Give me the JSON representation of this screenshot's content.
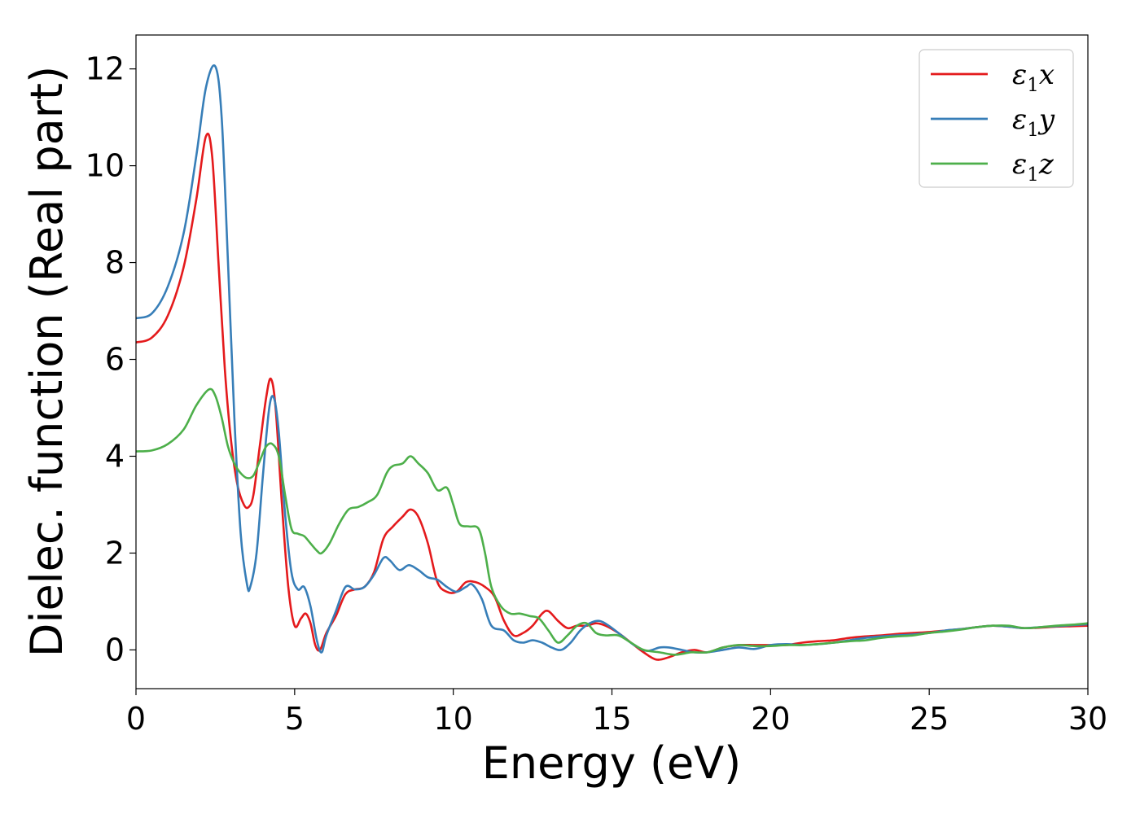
{
  "chart_data": {
    "type": "line",
    "xlabel": "Energy (eV)",
    "ylabel": "Dielec. function (Real part)",
    "xlim": [
      0,
      30
    ],
    "ylim": [
      -0.8,
      12.7
    ],
    "xticks": [
      0,
      5,
      10,
      15,
      20,
      25,
      30
    ],
    "yticks": [
      0,
      2,
      4,
      6,
      8,
      10,
      12
    ],
    "grid": false,
    "legend_position": "top-right",
    "series": [
      {
        "name": "ε₁x",
        "legend_parts": {
          "main": "ε",
          "sub": "1",
          "axis": "x"
        },
        "color": "#e41a1c",
        "points": [
          [
            0,
            6.35
          ],
          [
            0.5,
            6.45
          ],
          [
            1.0,
            6.9
          ],
          [
            1.5,
            7.9
          ],
          [
            1.9,
            9.3
          ],
          [
            2.2,
            10.6
          ],
          [
            2.4,
            10.2
          ],
          [
            2.6,
            8.0
          ],
          [
            2.8,
            5.8
          ],
          [
            3.0,
            4.3
          ],
          [
            3.2,
            3.4
          ],
          [
            3.4,
            3.0
          ],
          [
            3.55,
            2.95
          ],
          [
            3.7,
            3.2
          ],
          [
            3.9,
            4.2
          ],
          [
            4.1,
            5.2
          ],
          [
            4.25,
            5.6
          ],
          [
            4.4,
            5.0
          ],
          [
            4.6,
            3.0
          ],
          [
            4.8,
            1.3
          ],
          [
            5.0,
            0.5
          ],
          [
            5.2,
            0.65
          ],
          [
            5.35,
            0.75
          ],
          [
            5.5,
            0.55
          ],
          [
            5.65,
            0.1
          ],
          [
            5.8,
            0.0
          ],
          [
            6.0,
            0.35
          ],
          [
            6.3,
            0.7
          ],
          [
            6.6,
            1.15
          ],
          [
            6.9,
            1.25
          ],
          [
            7.2,
            1.3
          ],
          [
            7.5,
            1.6
          ],
          [
            7.8,
            2.3
          ],
          [
            8.1,
            2.55
          ],
          [
            8.4,
            2.75
          ],
          [
            8.65,
            2.9
          ],
          [
            8.9,
            2.75
          ],
          [
            9.2,
            2.2
          ],
          [
            9.5,
            1.4
          ],
          [
            9.8,
            1.2
          ],
          [
            10.1,
            1.2
          ],
          [
            10.4,
            1.4
          ],
          [
            10.7,
            1.4
          ],
          [
            11.0,
            1.3
          ],
          [
            11.3,
            1.1
          ],
          [
            11.6,
            0.6
          ],
          [
            11.9,
            0.3
          ],
          [
            12.2,
            0.35
          ],
          [
            12.5,
            0.5
          ],
          [
            12.8,
            0.75
          ],
          [
            13.0,
            0.8
          ],
          [
            13.3,
            0.6
          ],
          [
            13.6,
            0.45
          ],
          [
            13.9,
            0.5
          ],
          [
            14.2,
            0.5
          ],
          [
            14.5,
            0.55
          ],
          [
            14.8,
            0.5
          ],
          [
            15.2,
            0.35
          ],
          [
            15.6,
            0.15
          ],
          [
            16.0,
            -0.05
          ],
          [
            16.4,
            -0.2
          ],
          [
            16.8,
            -0.15
          ],
          [
            17.2,
            -0.05
          ],
          [
            17.6,
            0.0
          ],
          [
            18.0,
            -0.05
          ],
          [
            18.5,
            0.05
          ],
          [
            19.0,
            0.1
          ],
          [
            19.5,
            0.1
          ],
          [
            20.0,
            0.1
          ],
          [
            20.5,
            0.1
          ],
          [
            21.0,
            0.15
          ],
          [
            21.5,
            0.18
          ],
          [
            22.0,
            0.2
          ],
          [
            22.5,
            0.25
          ],
          [
            23.0,
            0.28
          ],
          [
            23.5,
            0.3
          ],
          [
            24.0,
            0.33
          ],
          [
            24.5,
            0.35
          ],
          [
            25.0,
            0.37
          ],
          [
            25.5,
            0.4
          ],
          [
            26.0,
            0.43
          ],
          [
            26.5,
            0.47
          ],
          [
            27.0,
            0.5
          ],
          [
            27.5,
            0.48
          ],
          [
            28.0,
            0.45
          ],
          [
            28.5,
            0.46
          ],
          [
            29.0,
            0.48
          ],
          [
            29.5,
            0.49
          ],
          [
            30.0,
            0.5
          ]
        ]
      },
      {
        "name": "ε₁y",
        "legend_parts": {
          "main": "ε",
          "sub": "1",
          "axis": "y"
        },
        "color": "#377eb8",
        "points": [
          [
            0,
            6.85
          ],
          [
            0.5,
            6.95
          ],
          [
            1.0,
            7.5
          ],
          [
            1.5,
            8.6
          ],
          [
            1.9,
            10.2
          ],
          [
            2.2,
            11.6
          ],
          [
            2.5,
            12.05
          ],
          [
            2.7,
            11.0
          ],
          [
            2.9,
            8.0
          ],
          [
            3.1,
            4.8
          ],
          [
            3.3,
            2.4
          ],
          [
            3.5,
            1.35
          ],
          [
            3.6,
            1.3
          ],
          [
            3.8,
            2.0
          ],
          [
            4.0,
            3.6
          ],
          [
            4.2,
            5.0
          ],
          [
            4.35,
            5.2
          ],
          [
            4.5,
            4.5
          ],
          [
            4.7,
            2.8
          ],
          [
            4.9,
            1.6
          ],
          [
            5.1,
            1.25
          ],
          [
            5.3,
            1.3
          ],
          [
            5.5,
            0.9
          ],
          [
            5.7,
            0.2
          ],
          [
            5.85,
            -0.05
          ],
          [
            6.0,
            0.3
          ],
          [
            6.3,
            0.8
          ],
          [
            6.6,
            1.3
          ],
          [
            6.9,
            1.25
          ],
          [
            7.2,
            1.3
          ],
          [
            7.5,
            1.55
          ],
          [
            7.8,
            1.9
          ],
          [
            8.0,
            1.85
          ],
          [
            8.3,
            1.65
          ],
          [
            8.6,
            1.75
          ],
          [
            8.9,
            1.65
          ],
          [
            9.2,
            1.5
          ],
          [
            9.5,
            1.45
          ],
          [
            9.8,
            1.3
          ],
          [
            10.1,
            1.2
          ],
          [
            10.4,
            1.3
          ],
          [
            10.6,
            1.35
          ],
          [
            10.9,
            1.05
          ],
          [
            11.2,
            0.5
          ],
          [
            11.6,
            0.4
          ],
          [
            11.9,
            0.2
          ],
          [
            12.2,
            0.15
          ],
          [
            12.5,
            0.2
          ],
          [
            12.8,
            0.15
          ],
          [
            13.1,
            0.05
          ],
          [
            13.4,
            0.0
          ],
          [
            13.7,
            0.15
          ],
          [
            14.0,
            0.4
          ],
          [
            14.3,
            0.55
          ],
          [
            14.6,
            0.6
          ],
          [
            14.9,
            0.5
          ],
          [
            15.3,
            0.3
          ],
          [
            15.7,
            0.1
          ],
          [
            16.1,
            -0.02
          ],
          [
            16.5,
            0.05
          ],
          [
            16.8,
            0.05
          ],
          [
            17.2,
            0.0
          ],
          [
            17.6,
            -0.05
          ],
          [
            18.0,
            -0.05
          ],
          [
            18.5,
            0.0
          ],
          [
            19.0,
            0.05
          ],
          [
            19.5,
            0.02
          ],
          [
            20.0,
            0.1
          ],
          [
            20.5,
            0.12
          ],
          [
            21.0,
            0.1
          ],
          [
            21.5,
            0.12
          ],
          [
            22.0,
            0.15
          ],
          [
            22.5,
            0.2
          ],
          [
            23.0,
            0.25
          ],
          [
            23.5,
            0.28
          ],
          [
            24.0,
            0.3
          ],
          [
            24.5,
            0.32
          ],
          [
            25.0,
            0.35
          ],
          [
            25.5,
            0.4
          ],
          [
            26.0,
            0.43
          ],
          [
            26.5,
            0.47
          ],
          [
            27.0,
            0.5
          ],
          [
            27.5,
            0.48
          ],
          [
            28.0,
            0.45
          ],
          [
            28.5,
            0.47
          ],
          [
            29.0,
            0.49
          ],
          [
            29.5,
            0.51
          ],
          [
            30.0,
            0.53
          ]
        ]
      },
      {
        "name": "ε₁z",
        "legend_parts": {
          "main": "ε",
          "sub": "1",
          "axis": "z"
        },
        "color": "#4daf4a",
        "points": [
          [
            0,
            4.1
          ],
          [
            0.5,
            4.12
          ],
          [
            1.0,
            4.25
          ],
          [
            1.5,
            4.55
          ],
          [
            1.9,
            5.05
          ],
          [
            2.3,
            5.38
          ],
          [
            2.5,
            5.25
          ],
          [
            2.7,
            4.8
          ],
          [
            2.9,
            4.2
          ],
          [
            3.1,
            3.85
          ],
          [
            3.3,
            3.65
          ],
          [
            3.5,
            3.55
          ],
          [
            3.7,
            3.6
          ],
          [
            3.9,
            3.9
          ],
          [
            4.1,
            4.2
          ],
          [
            4.3,
            4.25
          ],
          [
            4.5,
            4.0
          ],
          [
            4.7,
            3.2
          ],
          [
            4.9,
            2.5
          ],
          [
            5.1,
            2.4
          ],
          [
            5.3,
            2.35
          ],
          [
            5.5,
            2.2
          ],
          [
            5.7,
            2.05
          ],
          [
            5.85,
            2.0
          ],
          [
            6.1,
            2.2
          ],
          [
            6.4,
            2.6
          ],
          [
            6.7,
            2.9
          ],
          [
            7.0,
            2.95
          ],
          [
            7.3,
            3.05
          ],
          [
            7.6,
            3.2
          ],
          [
            7.9,
            3.65
          ],
          [
            8.1,
            3.8
          ],
          [
            8.4,
            3.85
          ],
          [
            8.65,
            4.0
          ],
          [
            8.9,
            3.85
          ],
          [
            9.2,
            3.65
          ],
          [
            9.5,
            3.3
          ],
          [
            9.8,
            3.35
          ],
          [
            10.0,
            3.0
          ],
          [
            10.2,
            2.6
          ],
          [
            10.5,
            2.55
          ],
          [
            10.8,
            2.5
          ],
          [
            11.0,
            2.0
          ],
          [
            11.2,
            1.3
          ],
          [
            11.5,
            0.9
          ],
          [
            11.8,
            0.75
          ],
          [
            12.1,
            0.75
          ],
          [
            12.4,
            0.7
          ],
          [
            12.7,
            0.65
          ],
          [
            13.0,
            0.4
          ],
          [
            13.3,
            0.15
          ],
          [
            13.6,
            0.3
          ],
          [
            13.9,
            0.5
          ],
          [
            14.2,
            0.55
          ],
          [
            14.5,
            0.35
          ],
          [
            14.8,
            0.3
          ],
          [
            15.2,
            0.3
          ],
          [
            15.6,
            0.15
          ],
          [
            16.0,
            0.0
          ],
          [
            16.5,
            -0.05
          ],
          [
            17.0,
            -0.1
          ],
          [
            17.5,
            -0.05
          ],
          [
            18.0,
            -0.05
          ],
          [
            18.5,
            0.05
          ],
          [
            19.0,
            0.1
          ],
          [
            19.5,
            0.08
          ],
          [
            20.0,
            0.08
          ],
          [
            20.5,
            0.1
          ],
          [
            21.0,
            0.1
          ],
          [
            21.5,
            0.12
          ],
          [
            22.0,
            0.15
          ],
          [
            22.5,
            0.18
          ],
          [
            23.0,
            0.2
          ],
          [
            23.5,
            0.25
          ],
          [
            24.0,
            0.28
          ],
          [
            24.5,
            0.3
          ],
          [
            25.0,
            0.35
          ],
          [
            25.5,
            0.38
          ],
          [
            26.0,
            0.42
          ],
          [
            26.5,
            0.47
          ],
          [
            27.0,
            0.5
          ],
          [
            27.5,
            0.5
          ],
          [
            28.0,
            0.45
          ],
          [
            28.5,
            0.47
          ],
          [
            29.0,
            0.5
          ],
          [
            29.5,
            0.52
          ],
          [
            30.0,
            0.55
          ]
        ]
      }
    ]
  }
}
